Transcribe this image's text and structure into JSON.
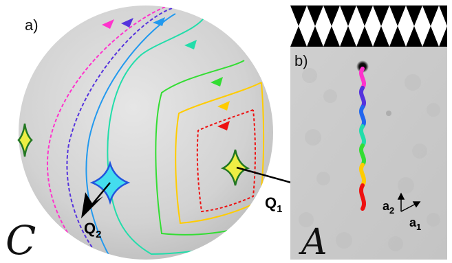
{
  "panel_a": {
    "label": "a)",
    "space_symbol": "C",
    "vector_q1": "Q",
    "vector_q1_sub": "1",
    "vector_q2": "Q",
    "vector_q2_sub": "2"
  },
  "panel_b": {
    "label": "b)",
    "space_symbol": "A",
    "basis_a1": "a",
    "basis_a1_sub": "1",
    "basis_a2": "a",
    "basis_a2_sub": "2"
  },
  "colors": {
    "sphere": "#d6d6d6",
    "magenta": "#ff33cc",
    "purple": "#5533dd",
    "blue": "#2299ee",
    "teal": "#22ddaa",
    "green": "#33dd33",
    "yellow": "#ffcc00",
    "red": "#ee1111",
    "cyan_star": "#44ddee",
    "yellow_star": "#eeee44",
    "star_outline": "#227722"
  }
}
